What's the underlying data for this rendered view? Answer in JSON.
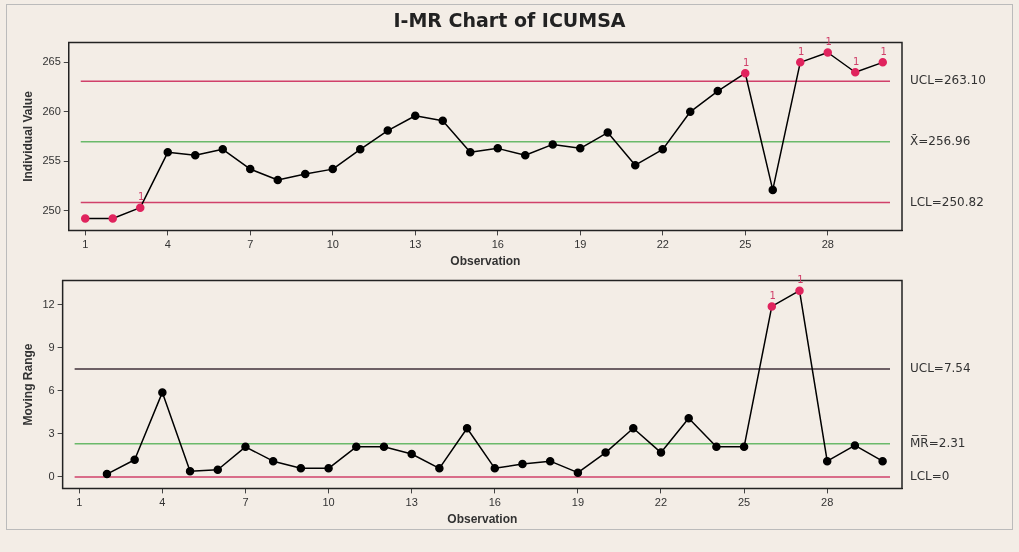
{
  "chart_data": [
    {
      "type": "line",
      "title": "I-MR Chart of ICUMSA",
      "xlabel": "Observation",
      "ylabel": "Individual Value",
      "marker": "circle",
      "legend": false,
      "grid": false,
      "x": [
        1,
        2,
        3,
        4,
        5,
        6,
        7,
        8,
        9,
        10,
        11,
        12,
        13,
        14,
        15,
        16,
        17,
        18,
        19,
        20,
        21,
        22,
        23,
        24,
        25,
        26,
        27,
        28,
        29,
        30
      ],
      "series": [
        {
          "color": "#000000",
          "colors": [
            "#e0245e",
            "#e0245e",
            "#e0245e",
            "#000000",
            "#000000",
            "#000000",
            "#000000",
            "#000000",
            "#000000",
            "#000000",
            "#000000",
            "#000000",
            "#000000",
            "#000000",
            "#000000",
            "#000000",
            "#000000",
            "#000000",
            "#000000",
            "#000000",
            "#000000",
            "#000000",
            "#000000",
            "#000000",
            "#e0245e",
            "#000000",
            "#e0245e",
            "#e0245e",
            "#e0245e",
            "#e0245e"
          ],
          "values": [
            249.2,
            249.2,
            250.3,
            255.9,
            255.6,
            256.2,
            254.2,
            253.1,
            253.7,
            254.2,
            256.2,
            258.1,
            259.6,
            259.1,
            255.9,
            256.3,
            255.6,
            256.7,
            256.3,
            257.9,
            254.6,
            256.2,
            260.0,
            262.1,
            263.9,
            252.1,
            265.0,
            266.0,
            264.0,
            265.0
          ]
        }
      ],
      "xlim": [
        0.4,
        30.7
      ],
      "xticks": [
        1,
        4,
        7,
        10,
        13,
        16,
        19,
        22,
        25,
        28
      ],
      "ylim": [
        248,
        267
      ],
      "yticks": [
        250,
        255,
        260,
        265
      ],
      "ref_lines": [
        {
          "axis": "y",
          "value": 263.1,
          "label": "UCL=263.10",
          "color": "#d0406a"
        },
        {
          "axis": "y",
          "value": 256.96,
          "label": "X̄=256.96",
          "color": "#6ab96a"
        },
        {
          "axis": "y",
          "value": 250.82,
          "label": "LCL=250.82",
          "color": "#d0406a"
        }
      ],
      "annotations": [
        {
          "text": "1",
          "x": 3,
          "y": 250.3
        },
        {
          "text": "1",
          "x": 25,
          "y": 263.9
        },
        {
          "text": "1",
          "x": 27,
          "y": 265.0
        },
        {
          "text": "1",
          "x": 28,
          "y": 266.0
        },
        {
          "text": "1",
          "x": 29,
          "y": 264.0
        },
        {
          "text": "1",
          "x": 30,
          "y": 265.0
        }
      ]
    },
    {
      "type": "line",
      "xlabel": "Observation",
      "ylabel": "Moving Range",
      "marker": "circle",
      "legend": false,
      "grid": false,
      "x": [
        2,
        3,
        4,
        5,
        6,
        7,
        8,
        9,
        10,
        11,
        12,
        13,
        14,
        15,
        16,
        17,
        18,
        19,
        20,
        21,
        22,
        23,
        24,
        25,
        26,
        27,
        28,
        29,
        30
      ],
      "series": [
        {
          "color": "#000000",
          "colors": [
            "#000000",
            "#000000",
            "#000000",
            "#000000",
            "#000000",
            "#000000",
            "#000000",
            "#000000",
            "#000000",
            "#000000",
            "#000000",
            "#000000",
            "#000000",
            "#000000",
            "#000000",
            "#000000",
            "#000000",
            "#000000",
            "#000000",
            "#000000",
            "#000000",
            "#000000",
            "#000000",
            "#000000",
            "#e0245e",
            "#e0245e",
            "#000000",
            "#000000",
            "#000000"
          ],
          "values": [
            0.2,
            1.2,
            5.9,
            0.4,
            0.5,
            2.1,
            1.1,
            0.6,
            0.6,
            2.1,
            2.1,
            1.6,
            0.6,
            3.4,
            0.6,
            0.9,
            1.1,
            0.3,
            1.7,
            3.4,
            1.7,
            4.1,
            2.1,
            2.1,
            11.9,
            13.0,
            1.1,
            2.2,
            1.1
          ]
        }
      ],
      "xlim": [
        0.4,
        30.7
      ],
      "xticks": [
        1,
        4,
        7,
        10,
        13,
        16,
        19,
        22,
        25,
        28
      ],
      "ylim": [
        -0.8,
        13.7
      ],
      "yticks": [
        0,
        3,
        6,
        9,
        12
      ],
      "ref_lines": [
        {
          "axis": "y",
          "value": 7.54,
          "label": "UCL=7.54",
          "color": "#40303a"
        },
        {
          "axis": "y",
          "value": 2.31,
          "label": "M̅R̅=2.31",
          "color": "#6ab96a"
        },
        {
          "axis": "y",
          "value": 0,
          "label": "LCL=0",
          "color": "#d0406a"
        }
      ],
      "annotations": [
        {
          "text": "1",
          "x": 26,
          "y": 11.9
        },
        {
          "text": "1",
          "x": 27,
          "y": 13.0
        }
      ]
    }
  ]
}
